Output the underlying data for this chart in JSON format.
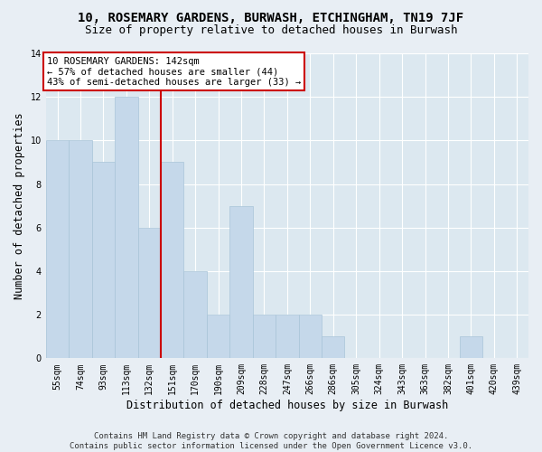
{
  "title": "10, ROSEMARY GARDENS, BURWASH, ETCHINGHAM, TN19 7JF",
  "subtitle": "Size of property relative to detached houses in Burwash",
  "xlabel": "Distribution of detached houses by size in Burwash",
  "ylabel": "Number of detached properties",
  "categories": [
    "55sqm",
    "74sqm",
    "93sqm",
    "113sqm",
    "132sqm",
    "151sqm",
    "170sqm",
    "190sqm",
    "209sqm",
    "228sqm",
    "247sqm",
    "266sqm",
    "286sqm",
    "305sqm",
    "324sqm",
    "343sqm",
    "363sqm",
    "382sqm",
    "401sqm",
    "420sqm",
    "439sqm"
  ],
  "values": [
    10,
    10,
    9,
    12,
    6,
    9,
    4,
    2,
    7,
    2,
    2,
    2,
    1,
    0,
    0,
    0,
    0,
    0,
    1,
    0,
    0
  ],
  "bar_color": "#c5d8ea",
  "bar_edge_color": "#a8c4d8",
  "vline_x": 4.5,
  "vline_color": "#cc0000",
  "annotation_text": "10 ROSEMARY GARDENS: 142sqm\n← 57% of detached houses are smaller (44)\n43% of semi-detached houses are larger (33) →",
  "annotation_box_facecolor": "#ffffff",
  "annotation_box_edgecolor": "#cc0000",
  "ylim": [
    0,
    14
  ],
  "yticks": [
    0,
    2,
    4,
    6,
    8,
    10,
    12,
    14
  ],
  "footer": "Contains HM Land Registry data © Crown copyright and database right 2024.\nContains public sector information licensed under the Open Government Licence v3.0.",
  "bg_color": "#e8eef4",
  "plot_bg_color": "#dce8f0",
  "title_fontsize": 10,
  "subtitle_fontsize": 9,
  "xlabel_fontsize": 8.5,
  "ylabel_fontsize": 8.5,
  "footer_fontsize": 6.5,
  "tick_fontsize": 7,
  "annotation_fontsize": 7.5,
  "grid_color": "#ffffff"
}
